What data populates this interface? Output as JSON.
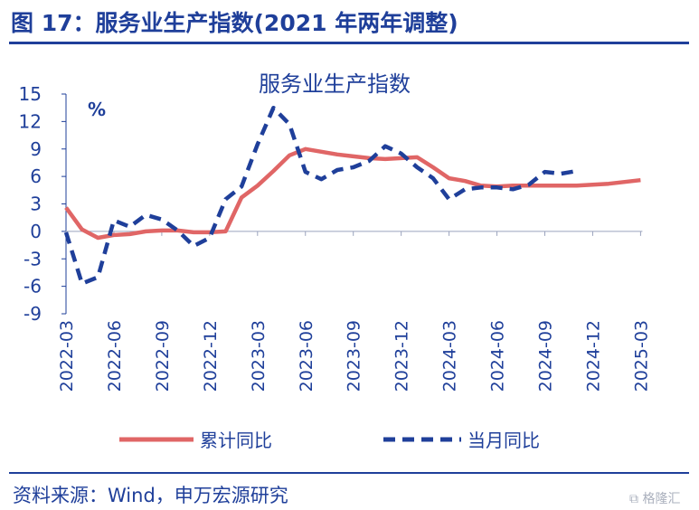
{
  "figure": {
    "title": "图 17：服务业生产指数(2021 年两年调整)",
    "source": "资料来源：Wind，申万宏源研究",
    "watermark": "格隆汇"
  },
  "chart_data": {
    "type": "line",
    "title": "服务业生产指数",
    "unit": "%",
    "xlabel": "",
    "ylabel": "%",
    "ylim": [
      -9,
      15
    ],
    "yticks": [
      15,
      12,
      9,
      6,
      3,
      0,
      -3,
      -6,
      -9
    ],
    "x_tick_labels": [
      "2022-03",
      "2022-06",
      "2022-09",
      "2022-12",
      "2023-03",
      "2023-06",
      "2023-09",
      "2023-12",
      "2024-03",
      "2024-06",
      "2024-09",
      "2024-12",
      "2025-03"
    ],
    "series": [
      {
        "name": "累计同比",
        "color": "#e06666",
        "style": "solid",
        "start": "2022-03",
        "values": [
          2.6,
          0.2,
          -0.7,
          -0.4,
          -0.3,
          0.0,
          0.1,
          0.1,
          -0.1,
          -0.1,
          0.0,
          3.7,
          5.0,
          6.6,
          8.3,
          9.0,
          8.7,
          8.4,
          8.2,
          8.0,
          7.9,
          8.0,
          8.1,
          7.0,
          5.8,
          5.5,
          5.0,
          4.9,
          5.0,
          5.0,
          5.0,
          5.0,
          5.0,
          5.1,
          5.2,
          5.4,
          5.6
        ]
      },
      {
        "name": "当月同比",
        "color": "#1f3f9a",
        "style": "dashed",
        "start": "2022-03",
        "values": [
          -0.1,
          -5.7,
          -5.0,
          1.2,
          0.5,
          1.8,
          1.3,
          0.1,
          -1.6,
          -0.7,
          3.5,
          4.9,
          9.5,
          13.5,
          11.7,
          6.5,
          5.7,
          6.7,
          7.0,
          7.7,
          9.3,
          8.5,
          7.0,
          5.8,
          3.5,
          4.6,
          4.8,
          4.8,
          4.6,
          5.1,
          6.5,
          6.3,
          6.6
        ]
      }
    ]
  },
  "colors": {
    "brand": "#1f3f9a",
    "cumulative": "#e06666",
    "monthly": "#1f3f9a"
  }
}
